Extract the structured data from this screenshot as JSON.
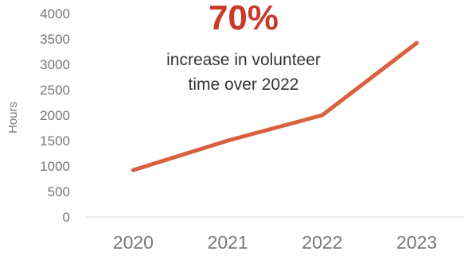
{
  "chart_data": {
    "type": "line",
    "categories": [
      "2020",
      "2021",
      "2022",
      "2023"
    ],
    "series": [
      {
        "values": [
          920,
          1500,
          2000,
          3420
        ]
      }
    ],
    "ylabel": "Hours",
    "xlabel": "",
    "title": "",
    "ylim": [
      0,
      4000
    ],
    "yticks": [
      0,
      500,
      1000,
      1500,
      2000,
      2500,
      3000,
      3500,
      4000
    ],
    "grid": false,
    "line_color": "#d9603e",
    "annotation": {
      "percent": "70%",
      "line1": "increase in volunteer",
      "line2": "time over 2022",
      "percent_color": "#c93a2b"
    }
  }
}
